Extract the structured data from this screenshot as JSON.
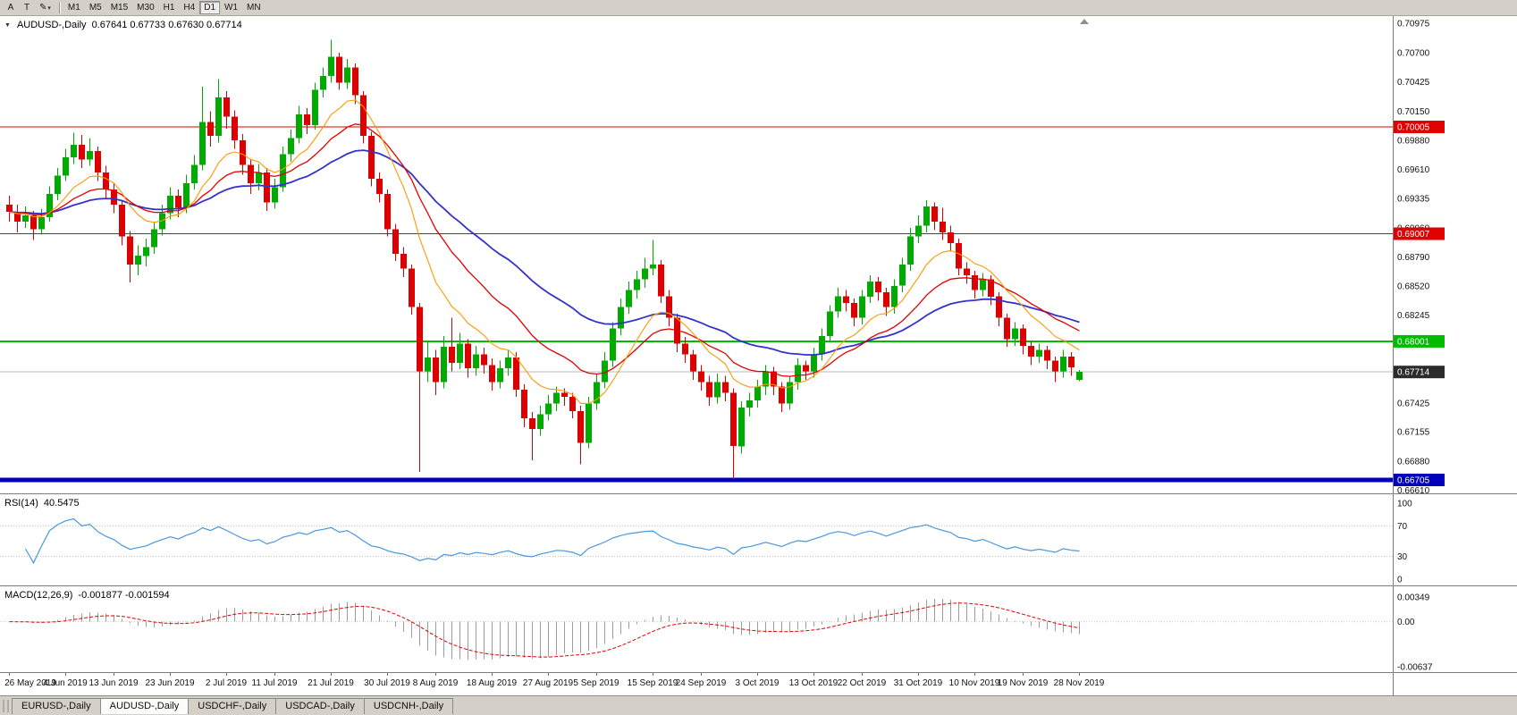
{
  "toolbar": {
    "left_buttons": [
      {
        "name": "arrow-tool-button",
        "label": "A"
      },
      {
        "name": "text-tool-button",
        "label": "T"
      },
      {
        "name": "draw-tool-button",
        "label": "✎",
        "dropdown": true
      }
    ],
    "timeframes": [
      "M1",
      "M5",
      "M15",
      "M30",
      "H1",
      "H4",
      "D1",
      "W1",
      "MN"
    ],
    "active_timeframe": "D1"
  },
  "chart": {
    "marker_icon": "▼",
    "title": "AUDUSD-,Daily",
    "ohlc_text": "0.67641 0.67733 0.67630 0.67714",
    "colors": {
      "up": "#00AA00",
      "down": "#DE0000",
      "ma_fast": "#FF9900",
      "ma_mid": "#E00000",
      "ma_slow": "#3333CC"
    }
  },
  "price_axis": [
    "0.70975",
    "0.70700",
    "0.70425",
    "0.70150",
    "0.69880",
    "0.69610",
    "0.69335",
    "0.69060",
    "0.68790",
    "0.68520",
    "0.68245",
    "0.67970",
    "0.67700",
    "0.67425",
    "0.67155",
    "0.66880",
    "0.66610"
  ],
  "hlines": [
    {
      "price": 0.70005,
      "label": "0.70005",
      "color": "#E00000",
      "width": 1
    },
    {
      "price": 0.69007,
      "label": "0.69007",
      "color": "#E00000",
      "width": 1
    },
    {
      "price": 0.68001,
      "label": "0.68001",
      "color": "#00BB00",
      "width": 2
    },
    {
      "price": 0.66705,
      "label": "0.66705",
      "color": "#0000BB",
      "width": 5
    }
  ],
  "current_price": {
    "value": 0.67714,
    "label": "0.67714",
    "tag_bg": "#2B2B2B",
    "line_color": "#B8B8B8"
  },
  "rsi": {
    "title": "RSI(14)",
    "value": "40.5475",
    "levels": [
      "100",
      "70",
      "30",
      "0"
    ],
    "line_color": "#4A97DC"
  },
  "macd": {
    "title": "MACD(12,26,9)",
    "values": "-0.001877 -0.001594",
    "axis": [
      "0.00349",
      "0.00",
      "-0.00637"
    ],
    "hist_color": "#9C9C9C",
    "signal_color": "#E00000"
  },
  "time_axis": [
    "26 May 2019",
    "4 Jun 2019",
    "13 Jun 2019",
    "23 Jun 2019",
    "2 Jul 2019",
    "11 Jul 2019",
    "21 Jul 2019",
    "30 Jul 2019",
    "8 Aug 2019",
    "18 Aug 2019",
    "27 Aug 2019",
    "5 Sep 2019",
    "15 Sep 2019",
    "24 Sep 2019",
    "3 Oct 2019",
    "13 Oct 2019",
    "22 Oct 2019",
    "31 Oct 2019",
    "10 Nov 2019",
    "19 Nov 2019",
    "28 Nov 2019"
  ],
  "tabs": [
    {
      "label": "EURUSD-,Daily",
      "active": false
    },
    {
      "label": "AUDUSD-,Daily",
      "active": true
    },
    {
      "label": "USDCHF-,Daily",
      "active": false
    },
    {
      "label": "USDCAD-,Daily",
      "active": false
    },
    {
      "label": "USDCNH-,Daily",
      "active": false
    }
  ],
  "chart_data": {
    "type": "candlestick",
    "symbol": "AUDUSD-",
    "timeframe": "Daily",
    "ohlc_display": {
      "open": "0.67641",
      "high": "0.67733",
      "low": "0.67630",
      "close": "0.67714"
    },
    "x_range": [
      "26 May 2019",
      "28 Nov 2019"
    ],
    "y_range": [
      0.6658,
      0.7104
    ],
    "levels": [
      0.70005,
      0.69007,
      0.68001,
      0.66705
    ],
    "candles": [
      [
        0.6928,
        0.6936,
        0.6912,
        0.6921
      ],
      [
        0.6921,
        0.6928,
        0.6902,
        0.6912
      ],
      [
        0.6912,
        0.6926,
        0.6906,
        0.6918
      ],
      [
        0.6918,
        0.6922,
        0.6895,
        0.6905
      ],
      [
        0.6905,
        0.6924,
        0.69,
        0.6916
      ],
      [
        0.6916,
        0.6945,
        0.6912,
        0.6938
      ],
      [
        0.6938,
        0.6962,
        0.6932,
        0.6955
      ],
      [
        0.6955,
        0.698,
        0.695,
        0.6972
      ],
      [
        0.6972,
        0.6995,
        0.6966,
        0.6984
      ],
      [
        0.6984,
        0.6993,
        0.6962,
        0.697
      ],
      [
        0.697,
        0.699,
        0.6964,
        0.6978
      ],
      [
        0.6978,
        0.6982,
        0.695,
        0.6958
      ],
      [
        0.6958,
        0.6964,
        0.6934,
        0.6942
      ],
      [
        0.6942,
        0.6948,
        0.692,
        0.6928
      ],
      [
        0.6928,
        0.6932,
        0.689,
        0.6898
      ],
      [
        0.6898,
        0.6903,
        0.6855,
        0.6872
      ],
      [
        0.6872,
        0.689,
        0.6862,
        0.688
      ],
      [
        0.688,
        0.6896,
        0.687,
        0.6888
      ],
      [
        0.6888,
        0.6912,
        0.6882,
        0.6905
      ],
      [
        0.6905,
        0.6928,
        0.6899,
        0.692
      ],
      [
        0.692,
        0.6944,
        0.6914,
        0.6936
      ],
      [
        0.6936,
        0.6942,
        0.6916,
        0.6925
      ],
      [
        0.6925,
        0.6956,
        0.692,
        0.6948
      ],
      [
        0.6948,
        0.6974,
        0.6942,
        0.6965
      ],
      [
        0.6965,
        0.7038,
        0.696,
        0.7005
      ],
      [
        0.7005,
        0.7015,
        0.6982,
        0.6992
      ],
      [
        0.6992,
        0.7045,
        0.6986,
        0.7028
      ],
      [
        0.7028,
        0.7034,
        0.6999,
        0.701
      ],
      [
        0.701,
        0.7016,
        0.698,
        0.6988
      ],
      [
        0.6988,
        0.6994,
        0.6956,
        0.6965
      ],
      [
        0.6965,
        0.697,
        0.6938,
        0.6948
      ],
      [
        0.6948,
        0.6966,
        0.6941,
        0.6958
      ],
      [
        0.6958,
        0.6962,
        0.6922,
        0.693
      ],
      [
        0.693,
        0.6952,
        0.6924,
        0.6944
      ],
      [
        0.6944,
        0.6982,
        0.694,
        0.6975
      ],
      [
        0.6975,
        0.6998,
        0.6968,
        0.699
      ],
      [
        0.699,
        0.702,
        0.6985,
        0.7012
      ],
      [
        0.7012,
        0.7018,
        0.6994,
        0.7002
      ],
      [
        0.7002,
        0.7042,
        0.6998,
        0.7035
      ],
      [
        0.7035,
        0.7056,
        0.7028,
        0.7048
      ],
      [
        0.7048,
        0.7082,
        0.7042,
        0.7066
      ],
      [
        0.7066,
        0.707,
        0.7035,
        0.7042
      ],
      [
        0.7042,
        0.7064,
        0.7036,
        0.7056
      ],
      [
        0.7056,
        0.706,
        0.7022,
        0.703
      ],
      [
        0.703,
        0.7034,
        0.6985,
        0.6992
      ],
      [
        0.6992,
        0.6996,
        0.6945,
        0.6952
      ],
      [
        0.6952,
        0.6958,
        0.693,
        0.6938
      ],
      [
        0.6938,
        0.6942,
        0.6898,
        0.6905
      ],
      [
        0.6905,
        0.691,
        0.6875,
        0.6882
      ],
      [
        0.6882,
        0.6888,
        0.686,
        0.6868
      ],
      [
        0.6868,
        0.6872,
        0.6825,
        0.6832
      ],
      [
        0.6832,
        0.6836,
        0.6678,
        0.6772
      ],
      [
        0.6772,
        0.68,
        0.6762,
        0.6785
      ],
      [
        0.6785,
        0.6792,
        0.675,
        0.6762
      ],
      [
        0.6762,
        0.6805,
        0.6756,
        0.6795
      ],
      [
        0.6795,
        0.6822,
        0.6772,
        0.678
      ],
      [
        0.678,
        0.6808,
        0.6774,
        0.6798
      ],
      [
        0.6798,
        0.6802,
        0.6766,
        0.6775
      ],
      [
        0.6775,
        0.6796,
        0.6768,
        0.6788
      ],
      [
        0.6788,
        0.6794,
        0.677,
        0.6778
      ],
      [
        0.6778,
        0.6784,
        0.6754,
        0.6762
      ],
      [
        0.6762,
        0.6782,
        0.6756,
        0.6775
      ],
      [
        0.6775,
        0.6792,
        0.6768,
        0.6785
      ],
      [
        0.6785,
        0.679,
        0.6748,
        0.6755
      ],
      [
        0.6755,
        0.676,
        0.672,
        0.6728
      ],
      [
        0.6728,
        0.6734,
        0.6689,
        0.6718
      ],
      [
        0.6718,
        0.674,
        0.6712,
        0.6732
      ],
      [
        0.6732,
        0.675,
        0.6726,
        0.6742
      ],
      [
        0.6742,
        0.6758,
        0.6735,
        0.6752
      ],
      [
        0.6752,
        0.6756,
        0.674,
        0.6748
      ],
      [
        0.6748,
        0.6752,
        0.6728,
        0.6735
      ],
      [
        0.6735,
        0.674,
        0.6685,
        0.6705
      ],
      [
        0.6705,
        0.6748,
        0.67,
        0.6742
      ],
      [
        0.6742,
        0.677,
        0.6736,
        0.6762
      ],
      [
        0.6762,
        0.679,
        0.6756,
        0.6782
      ],
      [
        0.6782,
        0.6818,
        0.6776,
        0.6812
      ],
      [
        0.6812,
        0.684,
        0.6806,
        0.6832
      ],
      [
        0.6832,
        0.6856,
        0.6826,
        0.6848
      ],
      [
        0.6848,
        0.6866,
        0.684,
        0.6858
      ],
      [
        0.6858,
        0.6878,
        0.685,
        0.6868
      ],
      [
        0.6868,
        0.6895,
        0.6862,
        0.6872
      ],
      [
        0.6872,
        0.6876,
        0.6836,
        0.6842
      ],
      [
        0.6842,
        0.6848,
        0.6814,
        0.6822
      ],
      [
        0.6822,
        0.6826,
        0.679,
        0.6798
      ],
      [
        0.6798,
        0.6804,
        0.678,
        0.6788
      ],
      [
        0.6788,
        0.6792,
        0.6764,
        0.6772
      ],
      [
        0.6772,
        0.6778,
        0.6754,
        0.6762
      ],
      [
        0.6762,
        0.6768,
        0.674,
        0.6748
      ],
      [
        0.6748,
        0.677,
        0.6742,
        0.6762
      ],
      [
        0.6762,
        0.6768,
        0.6744,
        0.6752
      ],
      [
        0.6752,
        0.6756,
        0.6671,
        0.6702
      ],
      [
        0.6702,
        0.6744,
        0.6695,
        0.6738
      ],
      [
        0.6738,
        0.6752,
        0.673,
        0.6745
      ],
      [
        0.6745,
        0.6764,
        0.6738,
        0.6758
      ],
      [
        0.6758,
        0.6778,
        0.675,
        0.6772
      ],
      [
        0.6772,
        0.6776,
        0.675,
        0.6758
      ],
      [
        0.6758,
        0.6762,
        0.6734,
        0.6742
      ],
      [
        0.6742,
        0.6768,
        0.6736,
        0.6762
      ],
      [
        0.6762,
        0.6784,
        0.6755,
        0.6778
      ],
      [
        0.6778,
        0.6782,
        0.6764,
        0.6772
      ],
      [
        0.6772,
        0.6794,
        0.6766,
        0.6788
      ],
      [
        0.6788,
        0.6812,
        0.6782,
        0.6805
      ],
      [
        0.6805,
        0.6834,
        0.68,
        0.6828
      ],
      [
        0.6828,
        0.685,
        0.6822,
        0.6842
      ],
      [
        0.6842,
        0.6848,
        0.6828,
        0.6836
      ],
      [
        0.6836,
        0.684,
        0.6814,
        0.6822
      ],
      [
        0.6822,
        0.6848,
        0.6816,
        0.6842
      ],
      [
        0.6842,
        0.6862,
        0.6836,
        0.6856
      ],
      [
        0.6856,
        0.686,
        0.6838,
        0.6846
      ],
      [
        0.6846,
        0.685,
        0.6824,
        0.6832
      ],
      [
        0.6832,
        0.6858,
        0.6826,
        0.6852
      ],
      [
        0.6852,
        0.6878,
        0.6846,
        0.6872
      ],
      [
        0.6872,
        0.6906,
        0.6866,
        0.6898
      ],
      [
        0.6898,
        0.6918,
        0.6892,
        0.6908
      ],
      [
        0.6908,
        0.6932,
        0.6902,
        0.6926
      ],
      [
        0.6926,
        0.693,
        0.6904,
        0.6912
      ],
      [
        0.6912,
        0.6925,
        0.6895,
        0.6902
      ],
      [
        0.6902,
        0.6908,
        0.6884,
        0.6892
      ],
      [
        0.6892,
        0.6896,
        0.6862,
        0.6868
      ],
      [
        0.6868,
        0.6874,
        0.6854,
        0.6862
      ],
      [
        0.6862,
        0.6866,
        0.684,
        0.6848
      ],
      [
        0.6848,
        0.6864,
        0.6842,
        0.6858
      ],
      [
        0.6858,
        0.6862,
        0.6834,
        0.6842
      ],
      [
        0.6842,
        0.6846,
        0.6814,
        0.6822
      ],
      [
        0.6822,
        0.6826,
        0.6795,
        0.6802
      ],
      [
        0.6802,
        0.6818,
        0.6796,
        0.6812
      ],
      [
        0.6812,
        0.6816,
        0.6788,
        0.6796
      ],
      [
        0.6796,
        0.68,
        0.6778,
        0.6786
      ],
      [
        0.6786,
        0.6798,
        0.678,
        0.6792
      ],
      [
        0.6792,
        0.6796,
        0.6774,
        0.6782
      ],
      [
        0.6782,
        0.6786,
        0.6762,
        0.6772
      ],
      [
        0.6772,
        0.6792,
        0.6766,
        0.6786
      ],
      [
        0.6786,
        0.679,
        0.6768,
        0.6776
      ],
      [
        0.67641,
        0.67733,
        0.6763,
        0.67714
      ]
    ],
    "moving_averages": [
      {
        "name": "fast",
        "period": 10,
        "method": "ema",
        "color": "#FF9900"
      },
      {
        "name": "mid",
        "period": 20,
        "method": "ema",
        "color": "#E00000"
      },
      {
        "name": "slow",
        "period": 40,
        "method": "ema",
        "color": "#3333CC"
      }
    ],
    "indicators": [
      {
        "name": "RSI",
        "period": 14,
        "last_value": 40.5475
      },
      {
        "name": "MACD",
        "fast": 12,
        "slow": 26,
        "signal": 9,
        "last_values": [
          -0.001877,
          -0.001594
        ]
      }
    ]
  }
}
